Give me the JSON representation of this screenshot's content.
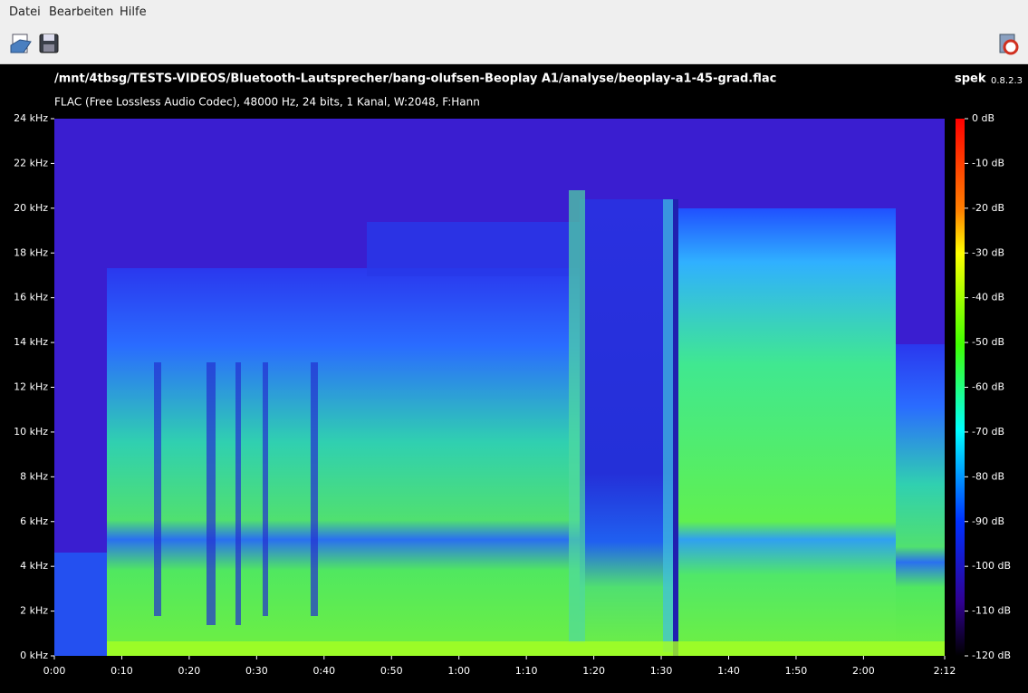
{
  "menu": [
    "Datei",
    "Bearbeiten",
    "Hilfe"
  ],
  "header": {
    "path": "/mnt/4tbsg/TESTS-VIDEOS/Bluetooth-Lautsprecher/bang-olufsen-Beoplay A1/analyse/beoplay-a1-45-grad.flac",
    "info": "FLAC (Free Lossless Audio Codec), 48000 Hz, 24 bits, 1 Kanal, W:2048, F:Hann",
    "app": "spek",
    "version": "0.8.2.3"
  },
  "freq_axis": [
    "24 kHz",
    "22 kHz",
    "20 kHz",
    "18 kHz",
    "16 kHz",
    "14 kHz",
    "12 kHz",
    "10 kHz",
    "8 kHz",
    "6 kHz",
    "4 kHz",
    "2 kHz",
    "0 kHz"
  ],
  "time_axis": [
    "0:00",
    "0:10",
    "0:20",
    "0:30",
    "0:40",
    "0:50",
    "1:00",
    "1:10",
    "1:20",
    "1:30",
    "1:40",
    "1:50",
    "2:00",
    "2:12"
  ],
  "db_scale": [
    "0 dB",
    "-10 dB",
    "-20 dB",
    "-30 dB",
    "-40 dB",
    "-50 dB",
    "-60 dB",
    "-70 dB",
    "-80 dB",
    "-90 dB",
    "-100 dB",
    "-110 dB",
    "-120 dB"
  ]
}
